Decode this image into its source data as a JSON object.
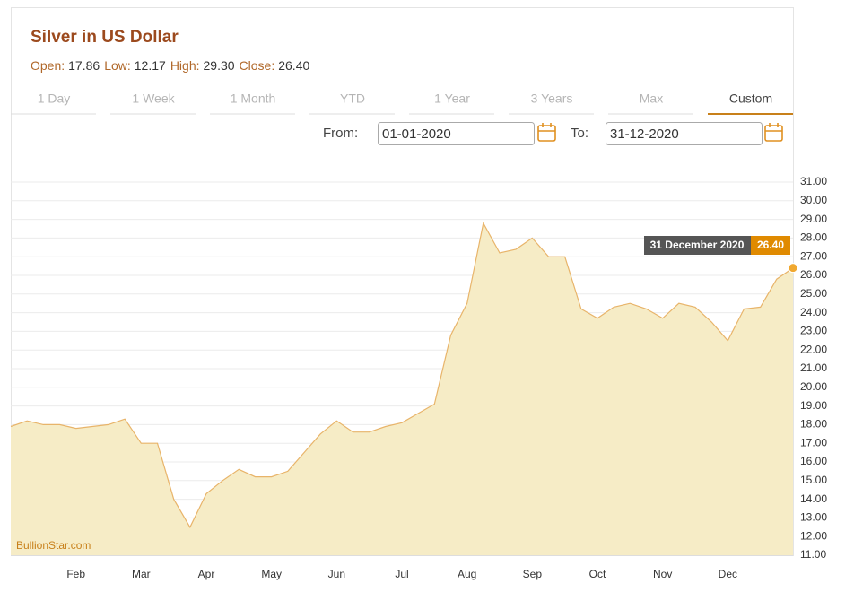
{
  "header": {
    "title": "Silver in US Dollar",
    "stats": [
      {
        "label": "Open:",
        "value": "17.86"
      },
      {
        "label": "Low:",
        "value": "12.17"
      },
      {
        "label": "High:",
        "value": "29.30"
      },
      {
        "label": "Close:",
        "value": "26.40"
      }
    ]
  },
  "tabs": {
    "items": [
      "1 Day",
      "1 Week",
      "1 Month",
      "YTD",
      "1 Year",
      "3 Years",
      "Max",
      "Custom"
    ],
    "active": 7
  },
  "range": {
    "from_label": "From:",
    "from": "01-01-2020",
    "to_label": "To:",
    "to": "31-12-2020"
  },
  "tooltip": {
    "date": "31 December 2020",
    "value": "26.40"
  },
  "watermark": "BullionStar.com",
  "chart_data": {
    "type": "area",
    "categories": [
      null,
      null,
      null,
      null,
      "Feb",
      null,
      null,
      null,
      "Mar",
      null,
      null,
      null,
      "Apr",
      null,
      null,
      null,
      "May",
      null,
      null,
      null,
      "Jun",
      null,
      null,
      null,
      "Jul",
      null,
      null,
      null,
      "Aug",
      null,
      null,
      null,
      "Sep",
      null,
      null,
      null,
      "Oct",
      null,
      null,
      null,
      "Nov",
      null,
      null,
      null,
      "Dec",
      null,
      null,
      null,
      null
    ],
    "values": [
      17.9,
      18.2,
      18.0,
      18.0,
      17.8,
      17.9,
      18.0,
      18.3,
      17.0,
      17.0,
      14.0,
      12.5,
      14.3,
      15.0,
      15.6,
      15.2,
      15.2,
      15.5,
      16.5,
      17.5,
      18.2,
      17.6,
      17.6,
      17.9,
      18.1,
      18.6,
      19.1,
      22.8,
      24.5,
      28.8,
      27.2,
      27.4,
      28.0,
      27.0,
      27.0,
      24.2,
      23.7,
      24.3,
      24.5,
      24.2,
      23.7,
      24.5,
      24.3,
      23.5,
      22.5,
      24.2,
      24.3,
      25.8,
      26.4
    ],
    "color": "#e8b46a",
    "fill": "#f6ecc6",
    "ylim": [
      11,
      31
    ],
    "yticks": [
      {
        "value": 11,
        "label": "11.00"
      },
      {
        "value": 12,
        "label": "12.00"
      },
      {
        "value": 13,
        "label": "13.00"
      },
      {
        "value": 14,
        "label": "14.00"
      },
      {
        "value": 15,
        "label": "15.00"
      },
      {
        "value": 16,
        "label": "16.00"
      },
      {
        "value": 17,
        "label": "17.00"
      },
      {
        "value": 18,
        "label": "18.00"
      },
      {
        "value": 19,
        "label": "19.00"
      },
      {
        "value": 20,
        "label": "20.00"
      },
      {
        "value": 21,
        "label": "21.00"
      },
      {
        "value": 22,
        "label": "22.00"
      },
      {
        "value": 23,
        "label": "23.00"
      },
      {
        "value": 24,
        "label": "24.00"
      },
      {
        "value": 25,
        "label": "25.00"
      },
      {
        "value": 26,
        "label": "26.00"
      },
      {
        "value": 27,
        "label": "27.00"
      },
      {
        "value": 28,
        "label": "28.00"
      },
      {
        "value": 29,
        "label": "29.00"
      },
      {
        "value": 30,
        "label": "30.00"
      },
      {
        "value": 31,
        "label": "31.00"
      }
    ],
    "grid": true
  }
}
